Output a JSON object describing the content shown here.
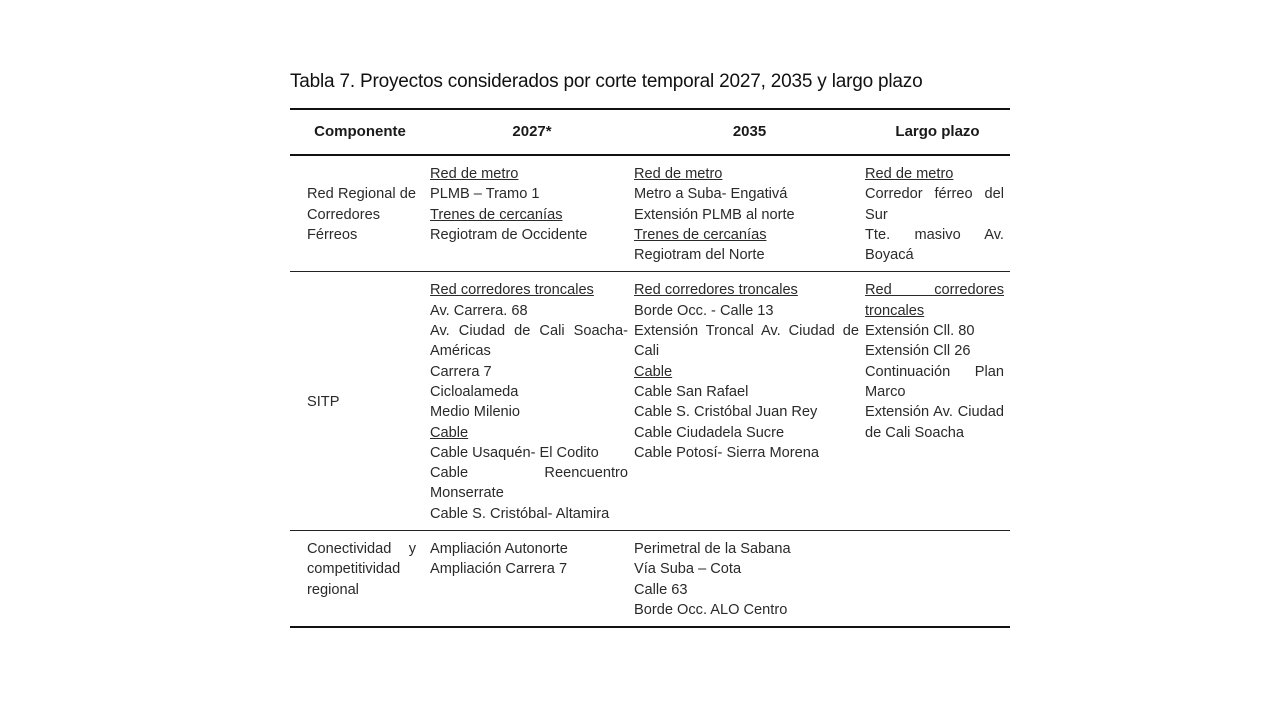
{
  "title": "Tabla 7. Proyectos considerados por corte temporal 2027, 2035 y largo plazo",
  "headers": {
    "componente": "Componente",
    "y2027": "2027*",
    "y2035": "2035",
    "largo": "Largo plazo"
  },
  "rows": [
    {
      "componente": "Red Regional de Corredores Férreos",
      "y2027": [
        {
          "text": "Red de metro",
          "underline": true
        },
        {
          "text": "PLMB – Tramo 1",
          "underline": false
        },
        {
          "text": "Trenes de cercanías",
          "underline": true
        },
        {
          "text": "Regiotram de Occidente",
          "underline": false
        }
      ],
      "y2035": [
        {
          "text": "Red de metro",
          "underline": true
        },
        {
          "text": "Metro a Suba- Engativá",
          "underline": false
        },
        {
          "text": "Extensión PLMB al norte",
          "underline": false
        },
        {
          "text": "Trenes de cercanías",
          "underline": true
        },
        {
          "text": "Regiotram del Norte",
          "underline": false
        }
      ],
      "largo": [
        {
          "text": "Red de metro",
          "underline": true
        },
        {
          "text": "Corredor férreo del Sur",
          "underline": false
        },
        {
          "text": "Tte. masivo Av. Boyacá",
          "underline": false
        }
      ]
    },
    {
      "componente": "SITP",
      "y2027": [
        {
          "text": "Red corredores troncales",
          "underline": true
        },
        {
          "text": "Av. Carrera. 68",
          "underline": false
        },
        {
          "text": "Av. Ciudad de Cali Soacha- Américas",
          "underline": false
        },
        {
          "text": "Carrera 7",
          "underline": false
        },
        {
          "text": "Cicloalameda",
          "underline": false
        },
        {
          "text": "Medio Milenio",
          "underline": false
        },
        {
          "text": "Cable",
          "underline": true
        },
        {
          "text": "Cable Usaquén- El Codito",
          "underline": false
        },
        {
          "text": "Cable Reencuentro Monserrate",
          "underline": false
        },
        {
          "text": "Cable S. Cristóbal- Altamira",
          "underline": false
        }
      ],
      "y2035": [
        {
          "text": "Red corredores troncales",
          "underline": true
        },
        {
          "text": "Borde Occ. - Calle 13",
          "underline": false
        },
        {
          "text": "Extensión Troncal Av. Ciudad de Cali",
          "underline": false
        },
        {
          "text": "Cable",
          "underline": true
        },
        {
          "text": "Cable San Rafael",
          "underline": false
        },
        {
          "text": "Cable S. Cristóbal Juan Rey",
          "underline": false
        },
        {
          "text": "Cable Ciudadela Sucre",
          "underline": false
        },
        {
          "text": "Cable Potosí- Sierra Morena",
          "underline": false
        }
      ],
      "largo": [
        {
          "text": "Red corredores troncales",
          "underline": true
        },
        {
          "text": "Extensión Cll. 80",
          "underline": false
        },
        {
          "text": "Extensión Cll 26",
          "underline": false
        },
        {
          "text": "Continuación Plan Marco",
          "underline": false
        },
        {
          "text": "Extensión Av. Ciudad de Cali Soacha",
          "underline": false
        }
      ]
    },
    {
      "componente": "Conectividad y competitividad regional",
      "y2027": [
        {
          "text": "Ampliación Autonorte",
          "underline": false
        },
        {
          "text": "Ampliación Carrera 7",
          "underline": false
        }
      ],
      "y2035": [
        {
          "text": "Perimetral de la Sabana",
          "underline": false
        },
        {
          "text": "Vía Suba – Cota",
          "underline": false
        },
        {
          "text": "Calle 63",
          "underline": false
        },
        {
          "text": "Borde Occ. ALO Centro",
          "underline": false
        }
      ],
      "largo": []
    }
  ]
}
